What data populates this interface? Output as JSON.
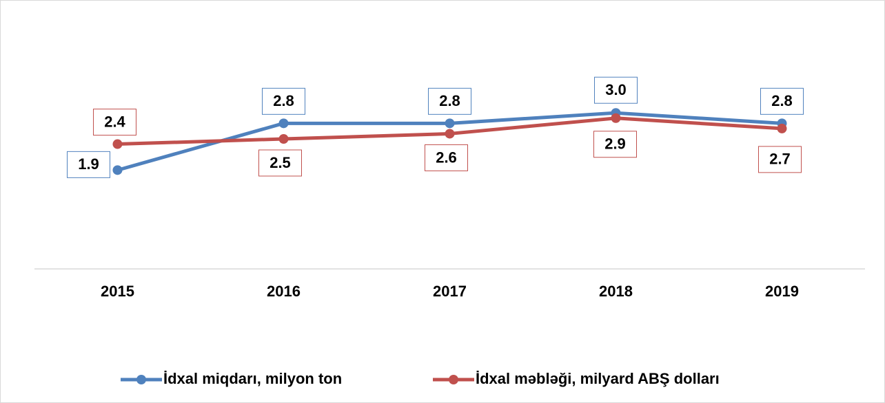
{
  "chart_data": {
    "type": "line",
    "categories": [
      "2015",
      "2016",
      "2017",
      "2018",
      "2019"
    ],
    "series": [
      {
        "name": "İdxal miqdarı, milyon ton",
        "color": "#4f81bd",
        "values": [
          1.9,
          2.8,
          2.8,
          3.0,
          2.8
        ],
        "value_labels": [
          "1.9",
          "2.8",
          "2.8",
          "3.0",
          "2.8"
        ]
      },
      {
        "name": "İdxal məbləği, milyard ABŞ dolları",
        "color": "#c0504d",
        "values": [
          2.4,
          2.5,
          2.6,
          2.9,
          2.7
        ],
        "value_labels": [
          "2.4",
          "2.5",
          "2.6",
          "2.9",
          "2.7"
        ]
      }
    ],
    "ylim": [
      0,
      5
    ],
    "legend": "bottom"
  }
}
